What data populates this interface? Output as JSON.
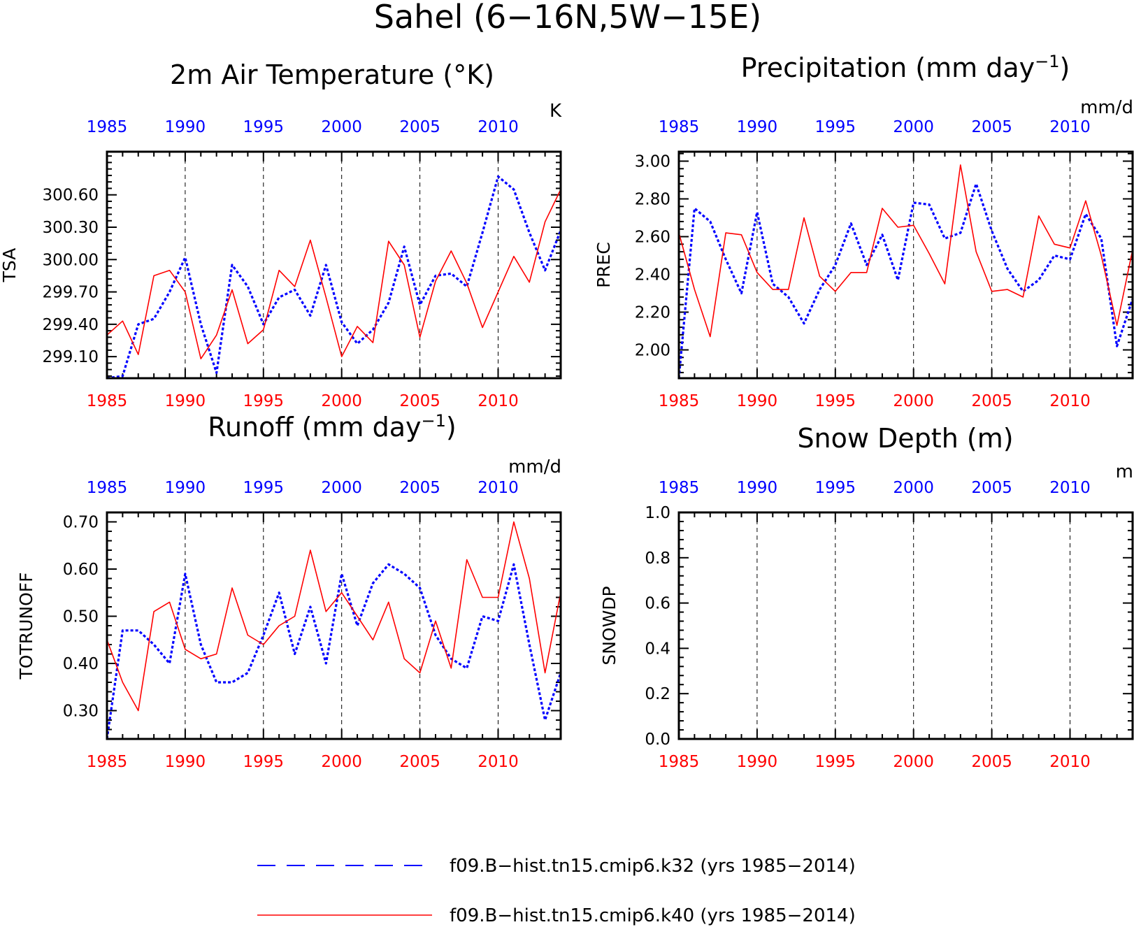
{
  "title": "Sahel (6−16N,5W−15E)",
  "colors": {
    "k32": "#0000ff",
    "k40": "#ff0000",
    "axis": "#000000"
  },
  "legend": [
    {
      "label": "f09.B−hist.tn15.cmip6.k32 (yrs 1985−2014)",
      "color": "#0000ff",
      "style": "dashed"
    },
    {
      "label": "f09.B−hist.tn15.cmip6.k40 (yrs 1985−2014)",
      "color": "#ff0000",
      "style": "solid"
    }
  ],
  "chart_data": [
    {
      "type": "line",
      "title": "2m Air Temperature (°K)",
      "unit_label": "K",
      "ylabel": "TSA",
      "xlim": [
        1985,
        2014
      ],
      "ylim": [
        298.9,
        301.0
      ],
      "yticks": [
        299.1,
        299.4,
        299.7,
        300.0,
        300.3,
        300.6
      ],
      "ytick_labels": [
        "299.10",
        "299.40",
        "299.70",
        "300.00",
        "300.30",
        "300.60"
      ],
      "xticks": [
        1985,
        1990,
        1995,
        2000,
        2005,
        2010
      ],
      "grid": "dashed vertical lines at 1990, 1995, 2000, 2005, 2010",
      "x": [
        1985,
        1986,
        1987,
        1988,
        1989,
        1990,
        1991,
        1992,
        1993,
        1994,
        1995,
        1996,
        1997,
        1998,
        1999,
        2000,
        2001,
        2002,
        2003,
        2004,
        2005,
        2006,
        2007,
        2008,
        2009,
        2010,
        2011,
        2012,
        2013,
        2014
      ],
      "series": [
        {
          "name": "k32",
          "values": [
            298.9,
            298.92,
            299.4,
            299.45,
            299.7,
            300.02,
            299.4,
            298.95,
            299.95,
            299.75,
            299.4,
            299.65,
            299.72,
            299.48,
            299.95,
            299.42,
            299.22,
            299.35,
            299.6,
            300.12,
            299.58,
            299.85,
            299.87,
            299.75,
            300.25,
            300.77,
            300.65,
            300.25,
            299.9,
            300.27
          ]
        },
        {
          "name": "k40",
          "values": [
            299.3,
            299.43,
            299.12,
            299.85,
            299.9,
            299.7,
            299.08,
            299.3,
            299.72,
            299.22,
            299.35,
            299.9,
            299.75,
            300.18,
            299.65,
            299.1,
            299.38,
            299.23,
            300.17,
            299.95,
            299.28,
            299.8,
            300.08,
            299.78,
            299.37,
            299.7,
            300.03,
            299.79,
            300.35,
            300.65
          ]
        }
      ]
    },
    {
      "type": "line",
      "title": "Precipitation (mm day",
      "title_sup": "−1",
      "title_end": ")",
      "unit_label": "mm/d",
      "ylabel": "PREC",
      "xlim": [
        1985,
        2014
      ],
      "ylim": [
        1.85,
        3.05
      ],
      "yticks": [
        2.0,
        2.2,
        2.4,
        2.6,
        2.8,
        3.0
      ],
      "ytick_labels": [
        "2.00",
        "2.20",
        "2.40",
        "2.60",
        "2.80",
        "3.00"
      ],
      "xticks": [
        1985,
        1990,
        1995,
        2000,
        2005,
        2010
      ],
      "grid": "dashed vertical lines at 1990, 1995, 2000, 2005, 2010",
      "x": [
        1985,
        1986,
        1987,
        1988,
        1989,
        1990,
        1991,
        1992,
        1993,
        1994,
        1995,
        1996,
        1997,
        1998,
        1999,
        2000,
        2001,
        2002,
        2003,
        2004,
        2005,
        2006,
        2007,
        2008,
        2009,
        2010,
        2011,
        2012,
        2013,
        2014
      ],
      "series": [
        {
          "name": "k32",
          "values": [
            1.85,
            2.75,
            2.68,
            2.48,
            2.3,
            2.73,
            2.35,
            2.28,
            2.14,
            2.32,
            2.45,
            2.67,
            2.45,
            2.61,
            2.37,
            2.78,
            2.77,
            2.59,
            2.62,
            2.88,
            2.63,
            2.43,
            2.31,
            2.37,
            2.5,
            2.48,
            2.72,
            2.59,
            2.02,
            2.27
          ]
        },
        {
          "name": "k40",
          "values": [
            2.62,
            2.32,
            2.07,
            2.62,
            2.61,
            2.41,
            2.32,
            2.32,
            2.7,
            2.39,
            2.31,
            2.41,
            2.41,
            2.75,
            2.65,
            2.66,
            2.51,
            2.35,
            2.98,
            2.52,
            2.31,
            2.32,
            2.28,
            2.71,
            2.56,
            2.54,
            2.79,
            2.5,
            2.13,
            2.53
          ]
        }
      ]
    },
    {
      "type": "line",
      "title": "Runoff (mm day",
      "title_sup": "−1",
      "title_end": ")",
      "unit_label": "mm/d",
      "ylabel": "TOTRUNOFF",
      "xlim": [
        1985,
        2014
      ],
      "ylim": [
        0.24,
        0.72
      ],
      "yticks": [
        0.3,
        0.4,
        0.5,
        0.6,
        0.7
      ],
      "ytick_labels": [
        "0.30",
        "0.40",
        "0.50",
        "0.60",
        "0.70"
      ],
      "xticks": [
        1985,
        1990,
        1995,
        2000,
        2005,
        2010
      ],
      "grid": "dashed vertical lines at 1990, 1995, 2000, 2005, 2010",
      "x": [
        1985,
        1986,
        1987,
        1988,
        1989,
        1990,
        1991,
        1992,
        1993,
        1994,
        1995,
        1996,
        1997,
        1998,
        1999,
        2000,
        2001,
        2002,
        2003,
        2004,
        2005,
        2006,
        2007,
        2008,
        2009,
        2010,
        2011,
        2012,
        2013,
        2014
      ],
      "series": [
        {
          "name": "k32",
          "values": [
            0.24,
            0.47,
            0.47,
            0.44,
            0.4,
            0.59,
            0.44,
            0.36,
            0.36,
            0.38,
            0.46,
            0.55,
            0.42,
            0.52,
            0.4,
            0.59,
            0.48,
            0.57,
            0.61,
            0.59,
            0.56,
            0.46,
            0.41,
            0.39,
            0.5,
            0.49,
            0.61,
            0.44,
            0.28,
            0.38
          ]
        },
        {
          "name": "k40",
          "values": [
            0.45,
            0.36,
            0.3,
            0.51,
            0.53,
            0.43,
            0.41,
            0.42,
            0.56,
            0.46,
            0.44,
            0.48,
            0.5,
            0.64,
            0.51,
            0.55,
            0.5,
            0.45,
            0.53,
            0.41,
            0.38,
            0.49,
            0.39,
            0.62,
            0.54,
            0.54,
            0.7,
            0.58,
            0.38,
            0.55
          ]
        }
      ]
    },
    {
      "type": "line",
      "title": "Snow Depth (m)",
      "unit_label": "m",
      "ylabel": "SNOWDP",
      "xlim": [
        1985,
        2014
      ],
      "ylim": [
        0.0,
        1.0
      ],
      "yticks": [
        0.0,
        0.2,
        0.4,
        0.6,
        0.8,
        1.0
      ],
      "ytick_labels": [
        "0.0",
        "0.2",
        "0.4",
        "0.6",
        "0.8",
        "1.0"
      ],
      "xticks": [
        1985,
        1990,
        1995,
        2000,
        2005,
        2010
      ],
      "grid": "dashed vertical lines at 1990, 1995, 2000, 2005, 2010",
      "x": [],
      "series": []
    }
  ]
}
